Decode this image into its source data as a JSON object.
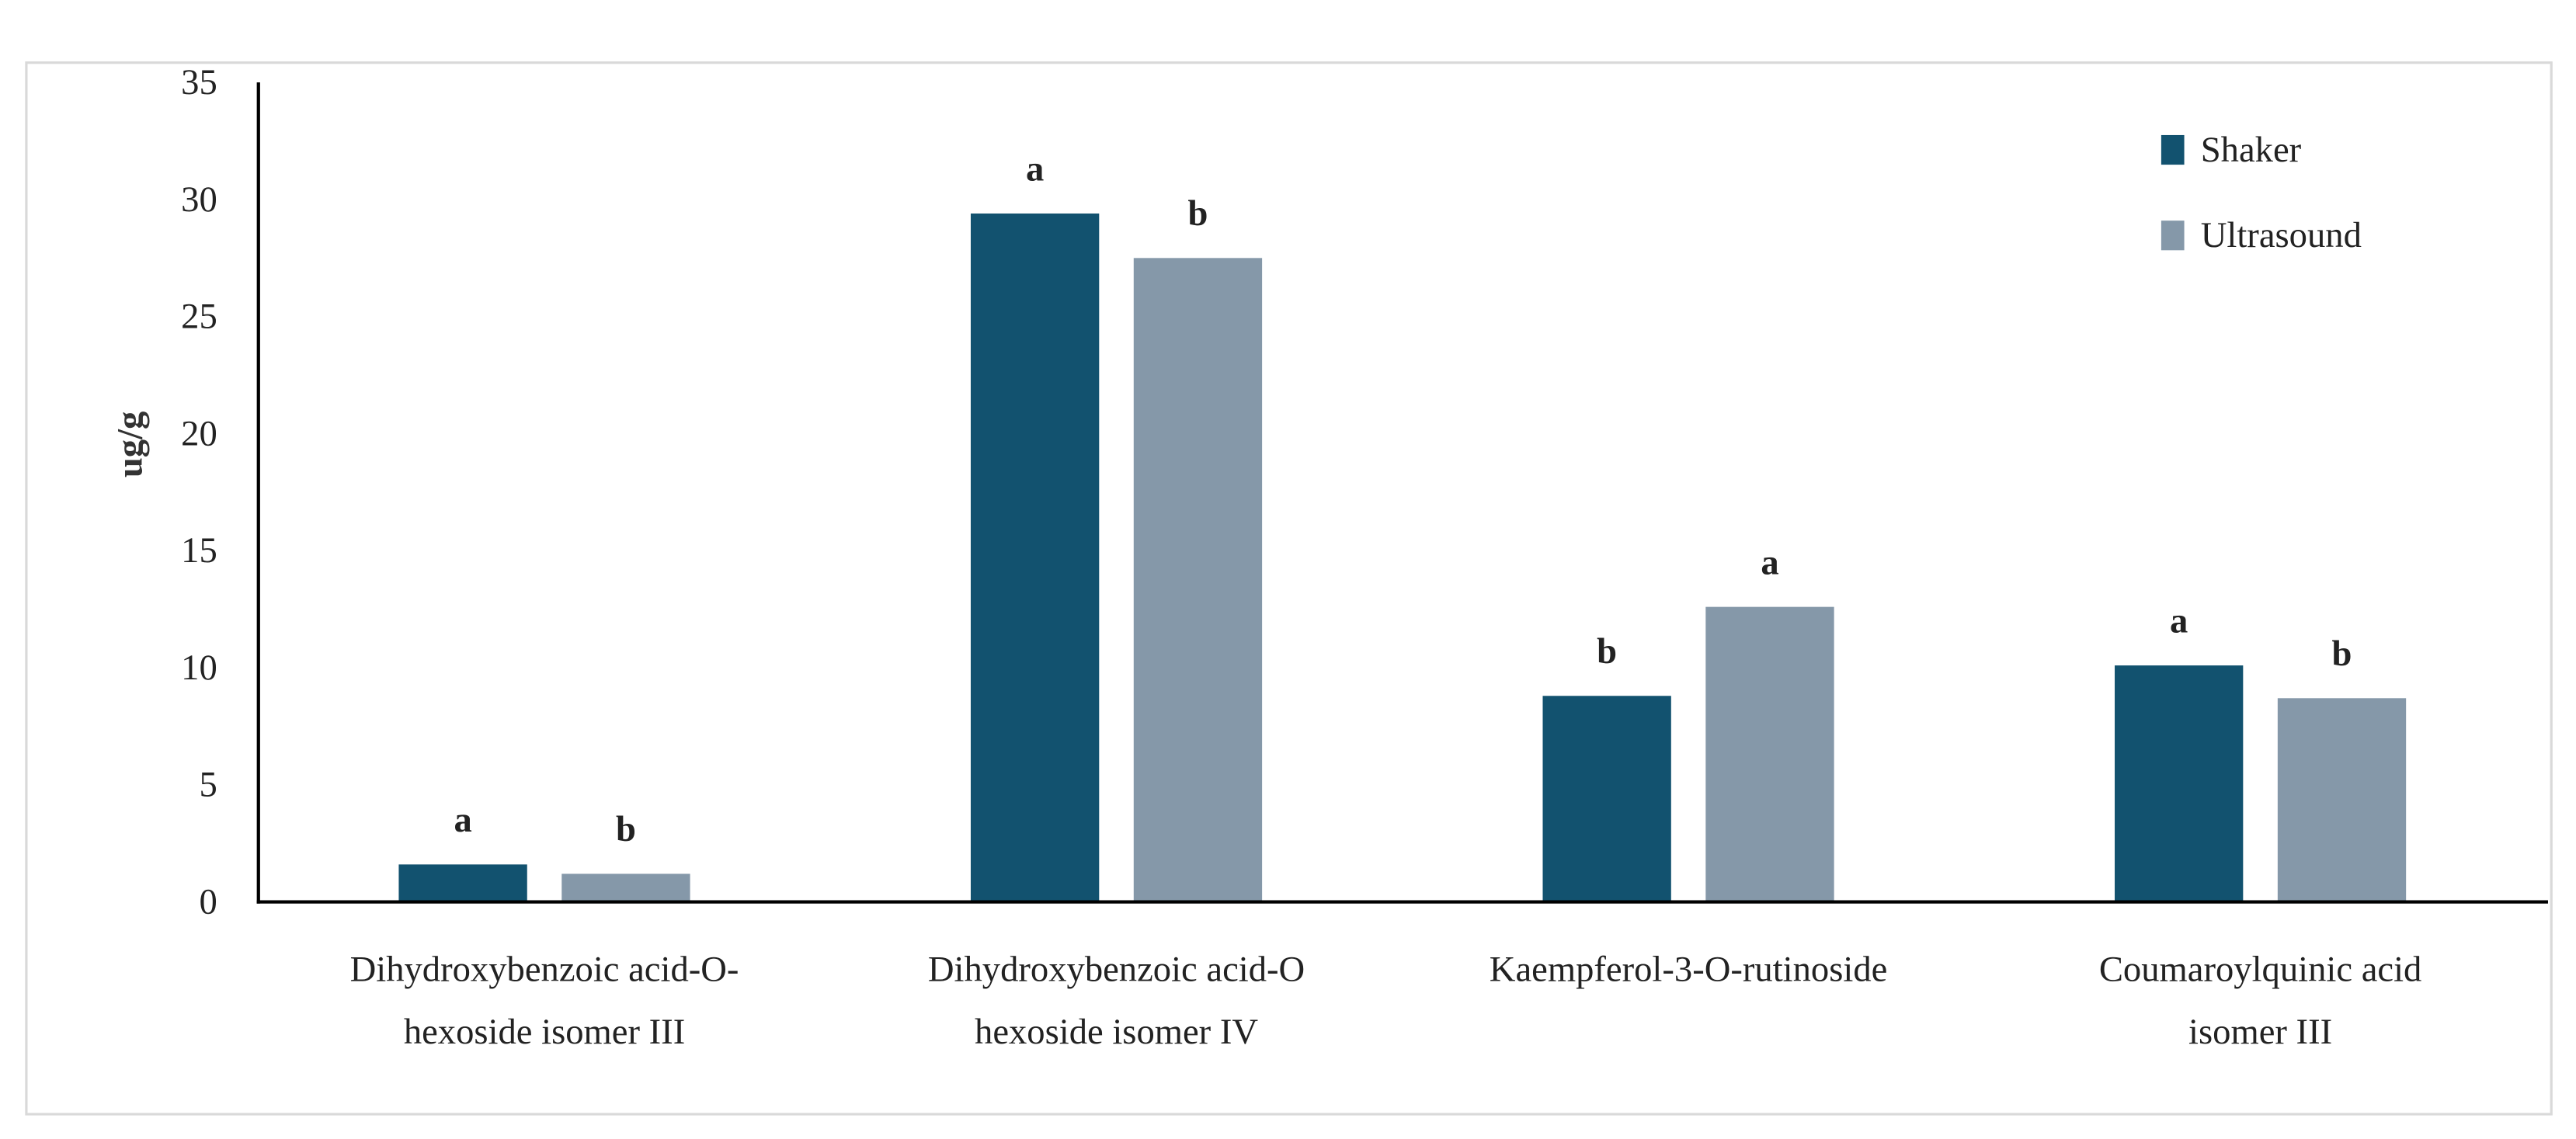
{
  "chart_data": {
    "type": "bar",
    "title": "",
    "xlabel": "",
    "ylabel": "ug/g",
    "ylim": [
      0,
      35
    ],
    "yticks": [
      0,
      5,
      10,
      15,
      20,
      25,
      30,
      35
    ],
    "grid": false,
    "legend_position": "top-right",
    "categories": [
      [
        "Dihydroxybenzoic acid-O-",
        "hexoside isomer III"
      ],
      [
        "Dihydroxybenzoic acid-O",
        "hexoside isomer IV"
      ],
      [
        "Kaempferol-3-O-rutinoside"
      ],
      [
        "Coumaroylquinic acid",
        "isomer III"
      ]
    ],
    "series": [
      {
        "name": "Shaker",
        "color": "#12526f",
        "values": [
          1.6,
          29.4,
          8.8,
          10.1
        ],
        "labels": [
          "a",
          "a",
          "b",
          "a"
        ]
      },
      {
        "name": "Ultrasound",
        "color": "#8598a9",
        "values": [
          1.2,
          27.5,
          12.6,
          8.7
        ],
        "labels": [
          "b",
          "b",
          "a",
          "b"
        ]
      }
    ]
  }
}
